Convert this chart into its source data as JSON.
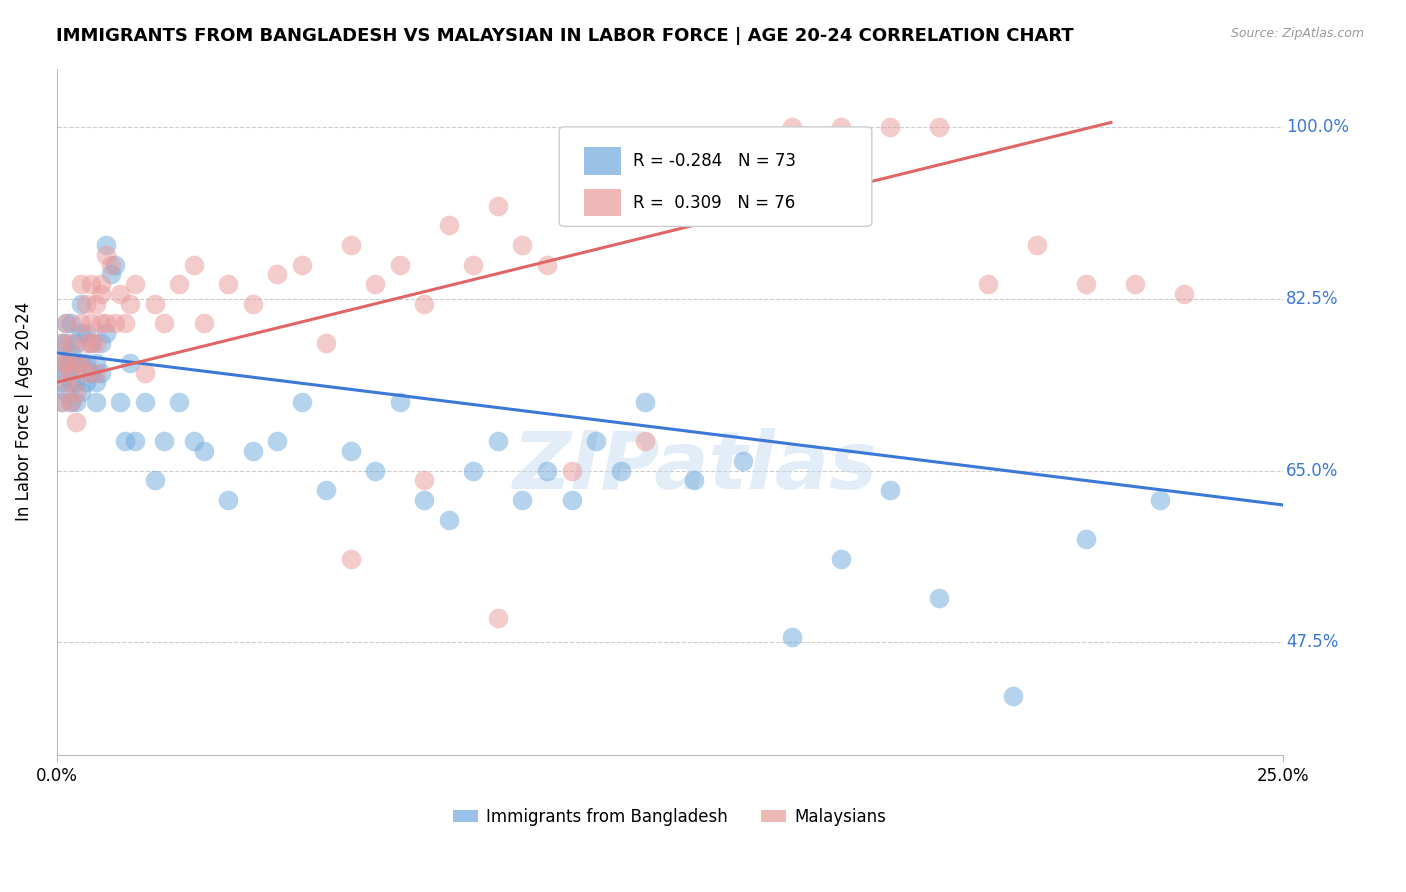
{
  "title": "IMMIGRANTS FROM BANGLADESH VS MALAYSIAN IN LABOR FORCE | AGE 20-24 CORRELATION CHART",
  "source_text": "Source: ZipAtlas.com",
  "ylabel": "In Labor Force | Age 20-24",
  "ytick_labels": [
    "100.0%",
    "82.5%",
    "65.0%",
    "47.5%"
  ],
  "ytick_values": [
    1.0,
    0.825,
    0.65,
    0.475
  ],
  "xlim": [
    0.0,
    0.25
  ],
  "ylim": [
    0.36,
    1.06
  ],
  "blue_color": "#6fa8dc",
  "pink_color": "#ea9999",
  "blue_line_color": "#3c78d8",
  "pink_line_color": "#e06666",
  "legend_r_blue": "-0.284",
  "legend_n_blue": "73",
  "legend_r_pink": "0.309",
  "legend_n_pink": "76",
  "watermark_text": "ZIPatlas",
  "grid_color": "#cccccc",
  "axis_color": "#bbbbbb",
  "right_ytick_color": "#3c78d8",
  "blue_line_x": [
    0.0,
    0.25
  ],
  "blue_line_y": [
    0.77,
    0.615
  ],
  "pink_line_x": [
    0.0,
    0.215
  ],
  "pink_line_y": [
    0.74,
    1.005
  ],
  "legend_labels": [
    "Immigrants from Bangladesh",
    "Malaysians"
  ],
  "blue_scatter_x": [
    0.001,
    0.001,
    0.001,
    0.001,
    0.002,
    0.002,
    0.002,
    0.002,
    0.002,
    0.003,
    0.003,
    0.003,
    0.003,
    0.003,
    0.004,
    0.004,
    0.004,
    0.004,
    0.005,
    0.005,
    0.005,
    0.005,
    0.006,
    0.006,
    0.006,
    0.007,
    0.007,
    0.008,
    0.008,
    0.008,
    0.009,
    0.009,
    0.01,
    0.01,
    0.011,
    0.012,
    0.013,
    0.014,
    0.015,
    0.016,
    0.018,
    0.02,
    0.022,
    0.025,
    0.028,
    0.03,
    0.035,
    0.04,
    0.045,
    0.05,
    0.055,
    0.06,
    0.065,
    0.07,
    0.075,
    0.08,
    0.085,
    0.09,
    0.095,
    0.1,
    0.105,
    0.11,
    0.115,
    0.12,
    0.13,
    0.14,
    0.15,
    0.16,
    0.17,
    0.18,
    0.195,
    0.21,
    0.225
  ],
  "blue_scatter_y": [
    0.76,
    0.72,
    0.78,
    0.74,
    0.76,
    0.73,
    0.78,
    0.8,
    0.75,
    0.74,
    0.72,
    0.76,
    0.8,
    0.77,
    0.74,
    0.72,
    0.76,
    0.78,
    0.73,
    0.76,
    0.79,
    0.82,
    0.74,
    0.76,
    0.79,
    0.78,
    0.75,
    0.74,
    0.72,
    0.76,
    0.78,
    0.75,
    0.88,
    0.79,
    0.85,
    0.86,
    0.72,
    0.68,
    0.76,
    0.68,
    0.72,
    0.64,
    0.68,
    0.72,
    0.68,
    0.67,
    0.62,
    0.67,
    0.68,
    0.72,
    0.63,
    0.67,
    0.65,
    0.72,
    0.62,
    0.6,
    0.65,
    0.68,
    0.62,
    0.65,
    0.62,
    0.68,
    0.65,
    0.72,
    0.64,
    0.66,
    0.48,
    0.56,
    0.63,
    0.52,
    0.42,
    0.58,
    0.62
  ],
  "pink_scatter_x": [
    0.001,
    0.001,
    0.001,
    0.002,
    0.002,
    0.002,
    0.003,
    0.003,
    0.003,
    0.004,
    0.004,
    0.004,
    0.005,
    0.005,
    0.005,
    0.006,
    0.006,
    0.006,
    0.007,
    0.007,
    0.007,
    0.008,
    0.008,
    0.008,
    0.009,
    0.009,
    0.009,
    0.01,
    0.01,
    0.011,
    0.012,
    0.013,
    0.014,
    0.015,
    0.016,
    0.018,
    0.02,
    0.022,
    0.025,
    0.028,
    0.03,
    0.035,
    0.04,
    0.045,
    0.05,
    0.055,
    0.06,
    0.065,
    0.07,
    0.075,
    0.08,
    0.085,
    0.09,
    0.095,
    0.1,
    0.105,
    0.11,
    0.115,
    0.12,
    0.125,
    0.13,
    0.14,
    0.15,
    0.16,
    0.17,
    0.18,
    0.19,
    0.2,
    0.21,
    0.22,
    0.06,
    0.075,
    0.09,
    0.105,
    0.12,
    0.23
  ],
  "pink_scatter_y": [
    0.76,
    0.72,
    0.78,
    0.74,
    0.76,
    0.8,
    0.72,
    0.75,
    0.78,
    0.7,
    0.73,
    0.76,
    0.8,
    0.84,
    0.76,
    0.82,
    0.78,
    0.75,
    0.84,
    0.8,
    0.78,
    0.82,
    0.78,
    0.75,
    0.84,
    0.8,
    0.83,
    0.87,
    0.8,
    0.86,
    0.8,
    0.83,
    0.8,
    0.82,
    0.84,
    0.75,
    0.82,
    0.8,
    0.84,
    0.86,
    0.8,
    0.84,
    0.82,
    0.85,
    0.86,
    0.78,
    0.88,
    0.84,
    0.86,
    0.82,
    0.9,
    0.86,
    0.92,
    0.88,
    0.86,
    0.92,
    0.92,
    0.92,
    0.96,
    0.98,
    0.95,
    0.97,
    1.0,
    1.0,
    1.0,
    1.0,
    0.84,
    0.88,
    0.84,
    0.84,
    0.56,
    0.64,
    0.5,
    0.65,
    0.68,
    0.83
  ]
}
